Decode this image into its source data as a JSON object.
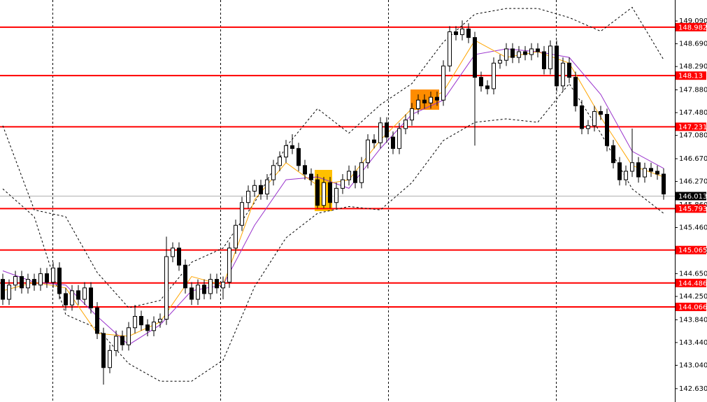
{
  "chart_data": {
    "type": "candlestick",
    "ylim": [
      142.395,
      149.459
    ],
    "yticks": [
      {
        "value": 149.09,
        "label": "149.090"
      },
      {
        "value": 148.69,
        "label": "148.690"
      },
      {
        "value": 148.29,
        "label": "148.290"
      },
      {
        "value": 147.88,
        "label": "147.880"
      },
      {
        "value": 147.48,
        "label": "147.480"
      },
      {
        "value": 147.08,
        "label": "147.080"
      },
      {
        "value": 146.67,
        "label": "146.670"
      },
      {
        "value": 146.27,
        "label": "146.270"
      },
      {
        "value": 145.86,
        "label": "145.860"
      },
      {
        "value": 145.46,
        "label": "145.460"
      },
      {
        "value": 145.05,
        "label": "145.050"
      },
      {
        "value": 144.65,
        "label": "144.650"
      },
      {
        "value": 144.25,
        "label": "144.250"
      },
      {
        "value": 143.84,
        "label": "143.840"
      },
      {
        "value": 143.44,
        "label": "143.440"
      },
      {
        "value": 143.04,
        "label": "143.040"
      },
      {
        "value": 142.63,
        "label": "142.630"
      }
    ],
    "up_color": "#ffffff",
    "down_color": "#000000",
    "open": [
      144.55,
      144.2,
      144.45,
      144.6,
      144.4,
      144.55,
      144.45,
      144.65,
      144.5,
      144.75,
      144.3,
      144.1,
      144.35,
      144.2,
      144.4,
      144.05,
      143.6,
      143.0,
      143.3,
      143.55,
      143.4,
      143.7,
      143.9,
      143.75,
      143.65,
      143.8,
      143.85,
      144.95,
      145.1,
      144.8,
      144.4,
      144.2,
      144.45,
      144.3,
      144.55,
      144.4,
      144.5,
      145.1,
      145.5,
      145.9,
      146.1,
      146.2,
      146.05,
      146.3,
      146.55,
      146.7,
      146.9,
      146.85,
      146.55,
      146.4,
      146.3,
      145.85,
      146.25,
      145.9,
      146.15,
      146.3,
      146.45,
      146.25,
      146.6,
      147.0,
      146.95,
      147.3,
      147.05,
      146.85,
      147.2,
      147.35,
      147.55,
      147.7,
      147.65,
      147.75,
      147.7,
      148.3,
      148.9,
      148.85,
      148.95,
      148.8,
      148.1,
      147.95,
      147.9,
      148.35,
      148.4,
      148.6,
      148.45,
      148.55,
      148.5,
      148.6,
      148.55,
      148.25,
      148.65,
      147.95,
      148.35,
      148.1,
      147.6,
      147.2,
      147.25,
      147.5,
      147.45,
      146.9,
      146.6,
      146.3,
      146.45,
      146.6,
      146.35,
      146.5,
      146.45,
      146.4
    ],
    "high": [
      144.65,
      144.55,
      144.7,
      144.7,
      144.65,
      144.65,
      144.75,
      144.75,
      144.85,
      144.85,
      144.4,
      144.45,
      144.45,
      144.5,
      144.5,
      144.15,
      143.7,
      143.4,
      143.65,
      143.65,
      143.8,
      144.1,
      144.0,
      143.85,
      143.9,
      143.95,
      145.3,
      145.2,
      145.2,
      144.9,
      144.5,
      144.55,
      144.55,
      144.65,
      144.65,
      144.6,
      145.2,
      145.6,
      146.0,
      146.2,
      146.3,
      146.3,
      146.4,
      146.65,
      146.8,
      147.0,
      147.1,
      146.95,
      146.65,
      146.5,
      146.4,
      146.35,
      146.35,
      146.25,
      146.4,
      146.55,
      146.55,
      146.7,
      147.1,
      147.1,
      147.4,
      147.4,
      147.15,
      147.3,
      147.45,
      147.65,
      147.8,
      147.8,
      147.85,
      147.85,
      148.4,
      149.0,
      149.0,
      149.1,
      149.05,
      148.9,
      148.2,
      148.05,
      148.45,
      148.5,
      148.7,
      148.7,
      148.65,
      148.65,
      148.7,
      148.7,
      148.65,
      148.75,
      148.75,
      148.45,
      148.45,
      148.2,
      147.7,
      147.35,
      147.6,
      147.6,
      147.55,
      147.0,
      146.7,
      146.55,
      147.2,
      146.7,
      146.6,
      146.6,
      146.55,
      146.5
    ],
    "low": [
      144.1,
      144.1,
      144.35,
      144.3,
      144.3,
      144.35,
      144.35,
      144.4,
      144.4,
      144.2,
      144.0,
      144.0,
      144.1,
      144.1,
      143.95,
      143.5,
      142.7,
      142.9,
      143.2,
      143.3,
      143.3,
      143.6,
      143.65,
      143.55,
      143.55,
      143.7,
      143.75,
      144.85,
      144.7,
      144.3,
      144.1,
      144.1,
      144.2,
      144.2,
      144.3,
      144.2,
      144.4,
      145.0,
      145.4,
      145.8,
      146.0,
      145.95,
      145.95,
      146.2,
      146.45,
      146.6,
      146.75,
      146.45,
      146.3,
      146.2,
      145.8,
      145.8,
      145.8,
      145.8,
      146.05,
      146.2,
      146.15,
      146.15,
      146.5,
      146.85,
      146.85,
      146.95,
      146.75,
      146.75,
      147.1,
      147.25,
      147.45,
      147.55,
      147.55,
      147.6,
      147.6,
      148.2,
      148.75,
      148.75,
      148.7,
      146.9,
      147.85,
      147.8,
      147.8,
      148.25,
      148.3,
      148.35,
      148.35,
      148.4,
      148.4,
      148.45,
      148.15,
      148.15,
      147.85,
      147.85,
      148.0,
      147.5,
      147.1,
      147.1,
      147.15,
      147.35,
      146.8,
      146.5,
      146.2,
      146.2,
      146.35,
      146.25,
      146.25,
      146.35,
      146.3,
      145.95
    ],
    "close": [
      144.2,
      144.45,
      144.6,
      144.4,
      144.55,
      144.45,
      144.65,
      144.5,
      144.75,
      144.3,
      144.1,
      144.35,
      144.2,
      144.4,
      144.05,
      143.6,
      143.0,
      143.3,
      143.55,
      143.4,
      143.7,
      143.9,
      143.75,
      143.65,
      143.8,
      143.85,
      144.95,
      145.1,
      144.8,
      144.4,
      144.2,
      144.45,
      144.3,
      144.55,
      144.4,
      144.5,
      145.1,
      145.5,
      145.9,
      146.1,
      146.2,
      146.05,
      146.3,
      146.55,
      146.7,
      146.9,
      146.85,
      146.55,
      146.4,
      146.3,
      145.85,
      146.25,
      145.9,
      146.15,
      146.3,
      146.45,
      146.25,
      146.6,
      147.0,
      146.95,
      147.3,
      147.05,
      146.85,
      147.2,
      147.35,
      147.55,
      147.7,
      147.65,
      147.75,
      147.7,
      148.3,
      148.9,
      148.85,
      148.95,
      148.8,
      148.1,
      147.95,
      147.9,
      148.35,
      148.4,
      148.6,
      148.45,
      148.55,
      148.5,
      148.6,
      148.55,
      148.25,
      148.65,
      147.95,
      148.35,
      148.1,
      147.6,
      147.2,
      147.25,
      147.5,
      147.45,
      146.9,
      146.6,
      146.3,
      146.45,
      146.6,
      146.35,
      146.5,
      146.45,
      146.4,
      146.05
    ],
    "lines": [
      {
        "color": "#000000",
        "style": "dashed",
        "values": [
          147.25,
          145.77,
          145.65,
          144.67,
          144.05,
          144.18,
          144.85,
          145.1,
          145.9,
          146.88,
          147.55,
          147.12,
          147.62,
          147.99,
          148.72,
          149.21,
          149.31,
          149.31,
          149.15,
          148.91,
          149.33,
          148.41
        ]
      },
      {
        "color": "#000000",
        "style": "dashed",
        "values": [
          146.14,
          145.65,
          143.93,
          143.69,
          143.07,
          142.76,
          142.76,
          143.13,
          144.42,
          145.28,
          145.71,
          145.83,
          145.77,
          146.25,
          146.99,
          147.31,
          147.37,
          147.31,
          147.99,
          147.12,
          146.14,
          145.71
        ]
      },
      {
        "color": "#9932cc",
        "style": "solid",
        "values": [
          144.7,
          144.5,
          144.45,
          143.9,
          143.4,
          143.75,
          144.35,
          144.45,
          145.5,
          146.3,
          146.35,
          146.15,
          146.85,
          147.45,
          147.7,
          148.5,
          148.6,
          148.55,
          148.45,
          147.8,
          146.8,
          146.5
        ]
      },
      {
        "color": "#ffa500",
        "style": "solid",
        "values": [
          144.35,
          144.5,
          144.4,
          143.6,
          143.55,
          143.8,
          144.6,
          144.45,
          145.95,
          146.6,
          146.2,
          146.3,
          147.0,
          147.55,
          147.85,
          148.75,
          148.45,
          148.55,
          148.35,
          147.4,
          146.55,
          146.35
        ]
      }
    ],
    "levels": {
      "color": "#ff0000",
      "values": [
        148.982,
        148.13,
        147.231,
        145.793,
        145.065,
        144.486,
        144.066
      ]
    },
    "last_price": {
      "value": 146.013,
      "color": "#000000"
    }
  }
}
